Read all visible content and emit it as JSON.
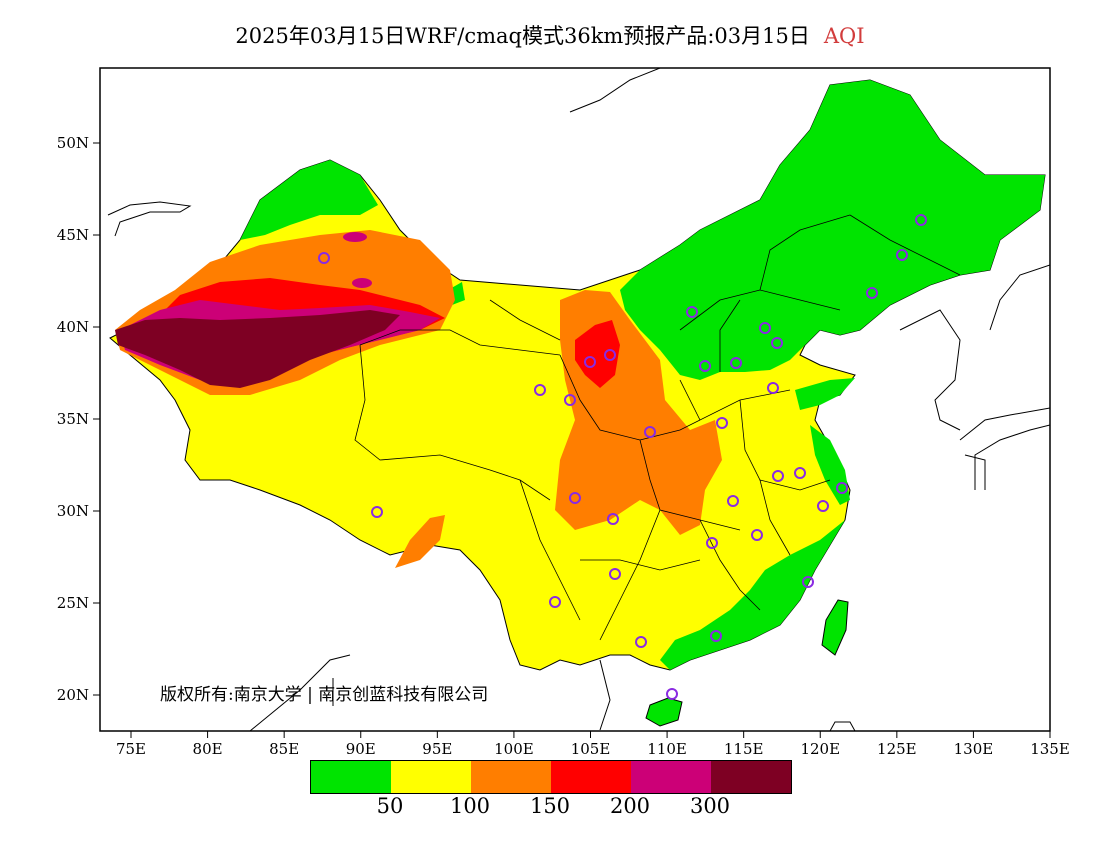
{
  "title": {
    "main": "2025年03月15日WRF/cmaq模式36km预报产品:03月15日",
    "variable": "AQI",
    "variable_color": "#d23c3c"
  },
  "axes": {
    "x_ticks": [
      "75E",
      "80E",
      "85E",
      "90E",
      "95E",
      "100E",
      "105E",
      "110E",
      "115E",
      "120E",
      "125E",
      "130E",
      "135E"
    ],
    "y_ticks": [
      "50N",
      "45N",
      "40N",
      "35N",
      "30N",
      "25N",
      "20N"
    ]
  },
  "copyright": "版权所有:南京大学 | 南京创蓝科技有限公司",
  "legend": {
    "colors": [
      "#00e400",
      "#ffff00",
      "#ff7e00",
      "#ff0000",
      "#cc0077",
      "#7e0023"
    ],
    "labels": [
      "50",
      "100",
      "150",
      "200",
      "300"
    ]
  },
  "colors": {
    "good": "#00e400",
    "moderate": "#ffff00",
    "usg": "#ff7e00",
    "unhealthy": "#ff0000",
    "very_unhealthy": "#cc0077",
    "hazardous": "#7e0023",
    "station_marker": "#8a2be2"
  }
}
